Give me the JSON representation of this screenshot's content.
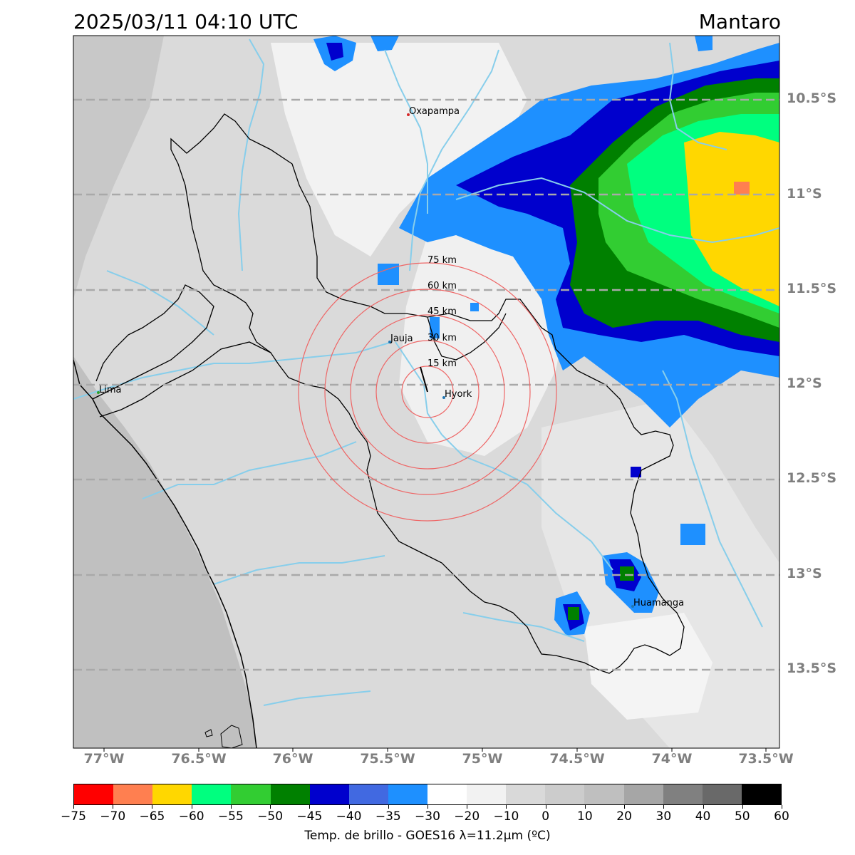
{
  "header": {
    "datetime": "2025/03/11 04:10 UTC",
    "region": "Mantaro"
  },
  "map": {
    "lon_range": [
      -77.15,
      -73.4
    ],
    "lat_range": [
      -13.95,
      -10.2
    ],
    "lat_ticks": [
      {
        "value": -10.5,
        "label": "10.5°S"
      },
      {
        "value": -11.0,
        "label": "11°S"
      },
      {
        "value": -11.5,
        "label": "11.5°S"
      },
      {
        "value": -12.0,
        "label": "12°S"
      },
      {
        "value": -12.5,
        "label": "12.5°S"
      },
      {
        "value": -13.0,
        "label": "13°S"
      },
      {
        "value": -13.5,
        "label": "13.5°S"
      }
    ],
    "lon_ticks": [
      {
        "value": -77.0,
        "label": "77°W"
      },
      {
        "value": -76.5,
        "label": "76.5°W"
      },
      {
        "value": -76.0,
        "label": "76°W"
      },
      {
        "value": -75.5,
        "label": "75.5°W"
      },
      {
        "value": -75.0,
        "label": "75°W"
      },
      {
        "value": -74.5,
        "label": "74.5°W"
      },
      {
        "value": -74.0,
        "label": "74°W"
      },
      {
        "value": -73.5,
        "label": "73.5°W"
      }
    ],
    "cities": [
      {
        "name": "Oxapampa",
        "lon": -75.39,
        "lat": -10.58,
        "color": "#d62728"
      },
      {
        "name": "Jauja",
        "lon": -75.49,
        "lat": -11.78,
        "color": "#1f77b4"
      },
      {
        "name": "Hyork",
        "lon": -75.22,
        "lat": -12.09,
        "color": "#1f77b4"
      },
      {
        "name": "Lima",
        "lon": -77.03,
        "lat": -12.05,
        "color": "#2ca02c"
      },
      {
        "name": "Huamanga",
        "lon": -74.22,
        "lat": -13.16,
        "color": "#1f77b4"
      }
    ],
    "range_rings": {
      "center": {
        "lon": -75.32,
        "lat": -12.04
      },
      "labels": [
        "15 km",
        "30 km",
        "45 km",
        "60 km",
        "75 km"
      ],
      "radii_km": [
        15,
        30,
        45,
        60,
        75
      ],
      "color": "#ee6666"
    },
    "storm_colors": {
      "cold": "#1e90ff",
      "colder": "#0000cd",
      "deep": "#008000",
      "very_deep": "#32cd32",
      "extreme": "#00ff7f",
      "top": "#ffd700",
      "peak": "#ff7f50"
    }
  },
  "colorbar": {
    "colors": [
      "#ff0000",
      "#ff7f50",
      "#ffd700",
      "#00ff7f",
      "#32cd32",
      "#008000",
      "#0000cd",
      "#4169e1",
      "#1e90ff",
      "#ffffff",
      "#f2f2f2",
      "#d9d9d9",
      "#cccccc",
      "#bfbfbf",
      "#a6a6a6",
      "#808080",
      "#696969",
      "#000000"
    ],
    "ticks": [
      "−75",
      "−70",
      "−65",
      "−60",
      "−55",
      "−50",
      "−45",
      "−40",
      "−35",
      "−30",
      "−20",
      "−10",
      "0",
      "10",
      "20",
      "30",
      "40",
      "50",
      "60"
    ],
    "label": "Temp. de brillo - GOES16 λ=11.2μm (ºC)"
  }
}
